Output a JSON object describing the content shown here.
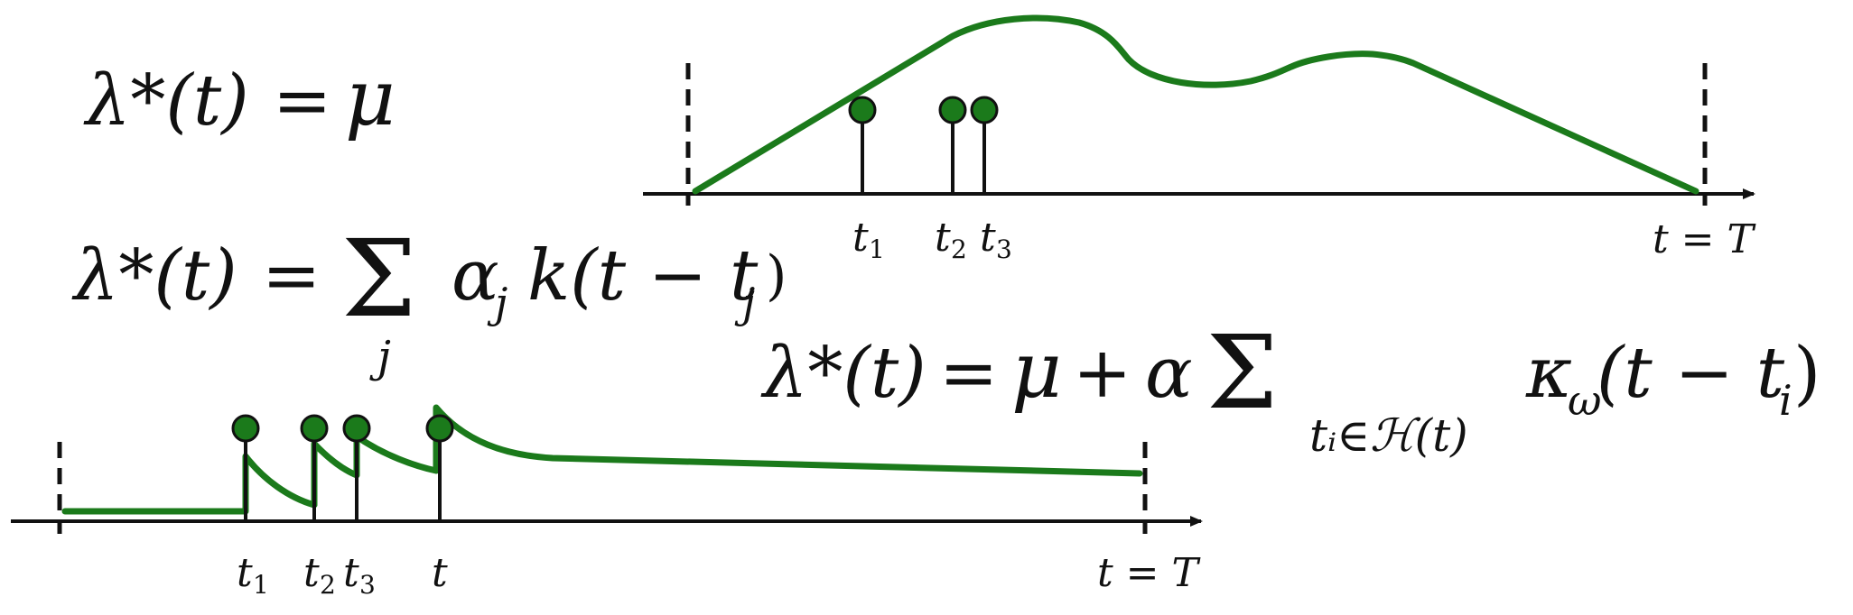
{
  "colors": {
    "curve": "#1b7a1b",
    "marker": "#1b7a1b",
    "axis": "#111111",
    "text": "#111111"
  },
  "equations": {
    "poisson": {
      "lhs": "λ*(t)",
      "eq": "=",
      "rhs": "μ"
    },
    "sum_kernel": {
      "lhs": "λ*(t)",
      "eq": "=",
      "sum": "Σ",
      "sum_index": "j",
      "term_a": "α",
      "term_a_sub": "j",
      "term_b": "k(t − t",
      "term_b_sub": "j",
      "term_b_close": ")"
    },
    "hawkes": {
      "lhs": "λ*(t)",
      "eq": "=",
      "mu": "μ",
      "plus": "+",
      "alpha": "α",
      "sum": "Σ",
      "sum_sub": "tᵢ∈ℋ(t)",
      "kappa": "κ",
      "kappa_sub": "ω",
      "arg": "(t − t",
      "arg_sub": "i",
      "arg_close": ")"
    }
  },
  "top_panel": {
    "events": [
      {
        "label": "t",
        "sub": "1"
      },
      {
        "label": "t",
        "sub": "2"
      },
      {
        "label": "t",
        "sub": "3"
      }
    ],
    "end_label": "t = T"
  },
  "bottom_panel": {
    "events": [
      {
        "label": "t",
        "sub": "1"
      },
      {
        "label": "t",
        "sub": "2"
      },
      {
        "label": "t",
        "sub": "3"
      },
      {
        "label": "t",
        "sub": ""
      }
    ],
    "end_label": "t = T"
  }
}
